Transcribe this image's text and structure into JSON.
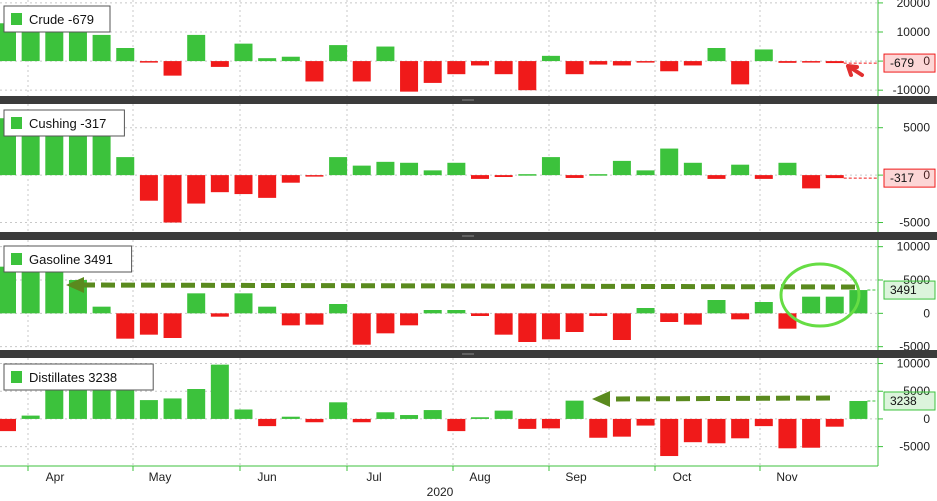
{
  "chart_data": {
    "type": "bar",
    "x_axis": {
      "months": [
        "Apr",
        "May",
        "Jun",
        "Jul",
        "Aug",
        "Sep",
        "Oct",
        "Nov"
      ],
      "year_label": "2020"
    },
    "colors": {
      "positive": "#3cc23c",
      "negative": "#f01a1a",
      "annotation": "#5a8a1e",
      "highlight": "#66dd44"
    },
    "panels": [
      {
        "name": "Crude",
        "legend": "Crude -679",
        "last_value": "-679",
        "ylim": [
          -12000,
          21000
        ],
        "ticks": [
          20000,
          10000,
          0,
          -10000
        ],
        "tick_labels": [
          "20000",
          "10000",
          "0",
          "-10000"
        ],
        "values": [
          13000,
          15500,
          19000,
          15000,
          9000,
          4500,
          -500,
          -5000,
          9000,
          -2000,
          6000,
          1000,
          1500,
          -7000,
          5500,
          -7000,
          5000,
          -10500,
          -7500,
          -4500,
          -1500,
          -4500,
          -10000,
          1800,
          -4500,
          -1200,
          -1500,
          -400,
          -3500,
          -1500,
          4500,
          -8000,
          4000,
          -600,
          -500,
          -679
        ]
      },
      {
        "name": "Cushing",
        "legend": "Cushing -317",
        "last_value": "-317",
        "ylim": [
          -6000,
          7500
        ],
        "ticks": [
          5000,
          0,
          -5000
        ],
        "tick_labels": [
          "5000",
          "0",
          "-5000"
        ],
        "values": [
          6000,
          6000,
          6000,
          6000,
          5500,
          1900,
          -2700,
          -5000,
          -3000,
          -1800,
          -2000,
          -2400,
          -800,
          -100,
          1900,
          1000,
          1400,
          1300,
          500,
          1300,
          -400,
          -200,
          100,
          1900,
          -300,
          100,
          1500,
          500,
          2800,
          1300,
          -400,
          1100,
          -400,
          1300,
          -1400,
          -317
        ]
      },
      {
        "name": "Gasoline",
        "legend": "Gasoline 3491",
        "last_value": "3491",
        "ylim": [
          -5500,
          11000
        ],
        "ticks": [
          10000,
          5000,
          0,
          -5000
        ],
        "tick_labels": [
          "10000",
          "5000",
          "0",
          "-5000"
        ],
        "values": [
          7000,
          7000,
          7000,
          5000,
          1000,
          -3800,
          -3200,
          -3700,
          3000,
          -500,
          3000,
          1000,
          -1800,
          -1700,
          1400,
          -4700,
          -3000,
          -1800,
          500,
          500,
          -400,
          -3200,
          -4300,
          -3900,
          -2800,
          -400,
          -4000,
          800,
          -1300,
          -1700,
          2000,
          -900,
          1700,
          -2300,
          2500,
          2500,
          3491
        ]
      },
      {
        "name": "Distillates",
        "legend": "Distillates 3238",
        "last_value": "3238",
        "ylim": [
          -8500,
          11000
        ],
        "ticks": [
          10000,
          5000,
          0,
          -5000
        ],
        "tick_labels": [
          "10000",
          "5000",
          "0",
          "-5000"
        ],
        "values": [
          -2200,
          600,
          8000,
          8000,
          8000,
          8000,
          3400,
          3700,
          5400,
          9800,
          1700,
          -1300,
          400,
          -600,
          3000,
          -600,
          1200,
          700,
          1600,
          -2200,
          300,
          1500,
          -1800,
          -1700,
          3300,
          -3400,
          -3200,
          -1200,
          -6700,
          -4200,
          -4400,
          -3500,
          -1300,
          -5300,
          -5200,
          -1400,
          3238
        ]
      }
    ]
  }
}
